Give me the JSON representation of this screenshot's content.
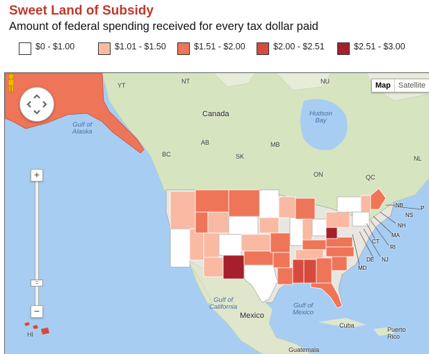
{
  "title": "Sweet Land of Subsidy",
  "subtitle": "Amount of federal spending received for every tax dollar paid",
  "legend": [
    {
      "label": "$0 - $1.00",
      "color": "#ffffff"
    },
    {
      "label": "$1.01 - $1.50",
      "color": "#f9b9a3"
    },
    {
      "label": "$1.51 - $2.00",
      "color": "#ee7557"
    },
    {
      "label": "$2.00 - $2.51",
      "color": "#d64b3e"
    },
    {
      "label": "$2.51 - $3.00",
      "color": "#a5202a"
    }
  ],
  "map": {
    "map_type": {
      "map": "Map",
      "satellite": "Satellite"
    },
    "zoom": {
      "in": "+",
      "out": "−"
    },
    "labels": {
      "yt": "YT",
      "nt": "NT",
      "nu": "NU",
      "canada": "Canada",
      "hudson_bay": "Hudson\nBay",
      "gulf_alaska": "Gulf of\nAlaska",
      "bc": "BC",
      "ab": "AB",
      "sk": "SK",
      "mb": "MB",
      "on": "ON",
      "qc": "QC",
      "nl": "NL",
      "nb": "NB",
      "ns": "NS",
      "pe": "P",
      "nh": "NH",
      "ma": "MA",
      "ri": "RI",
      "ct": "CT",
      "nj": "NJ",
      "de": "DE",
      "md": "MD",
      "gulf_california": "Gulf of\nCalifornia",
      "mexico": "Mexico",
      "gulf_mexico": "Gulf of\nMexico",
      "cuba": "Cuba",
      "puerto_rico": "Puerto\nRico",
      "hi": "HI",
      "guatemala": "Guatemala"
    }
  }
}
